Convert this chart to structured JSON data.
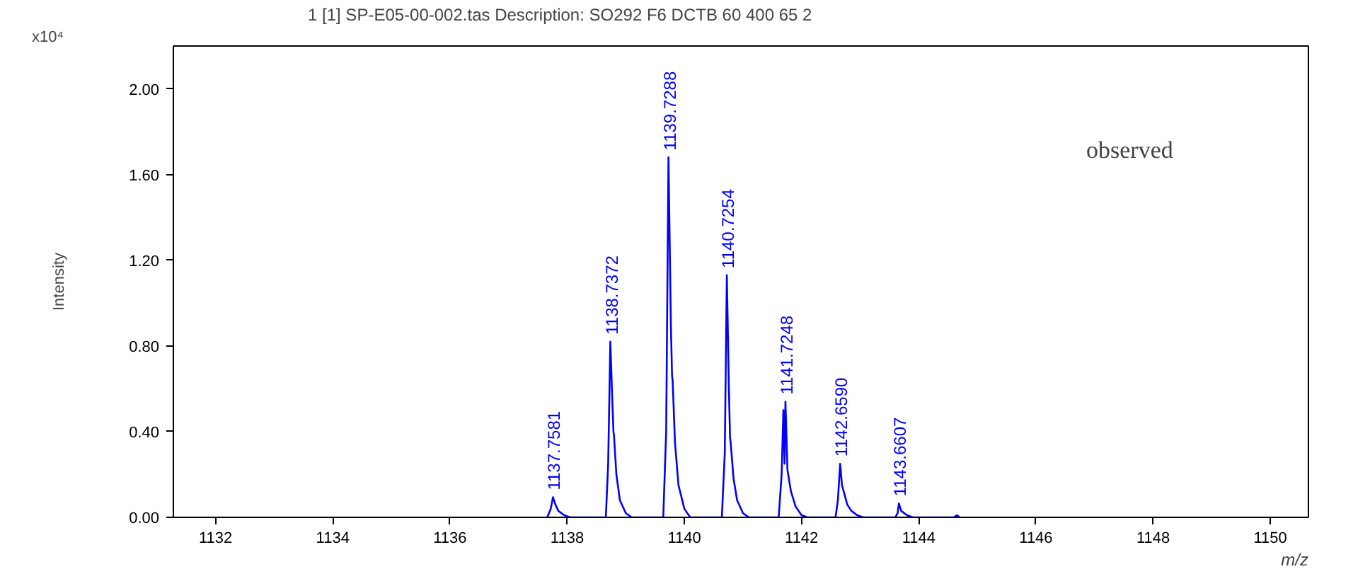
{
  "chart_data": {
    "type": "line",
    "title": "1 [1] SP-E05-00-002.tas    Description: SO292 F6 DCTB 60 400 65 2",
    "xlabel": "m/z",
    "ylabel": "Intensity",
    "annotations": [
      "x10⁴",
      "observed",
      {
        "text": "1137.7581",
        "x": 1137.7581,
        "y": 0.094
      },
      {
        "text": "1138.7372",
        "x": 1138.7372,
        "y": 0.82
      },
      {
        "text": "1139.7288",
        "x": 1139.7288,
        "y": 1.68
      },
      {
        "text": "1140.7254",
        "x": 1140.7254,
        "y": 1.13
      },
      {
        "text": "1141.7248",
        "x": 1141.7248,
        "y": 0.54
      },
      {
        "text": "1142.6590",
        "x": 1142.659,
        "y": 0.25
      },
      {
        "text": "1143.6607",
        "x": 1143.6607,
        "y": 0.065
      }
    ],
    "x": [
      1137.66,
      1137.72,
      1137.758,
      1137.8,
      1137.85,
      1137.95,
      1138.05,
      1138.66,
      1138.7,
      1138.737,
      1138.77,
      1138.79,
      1138.8,
      1138.84,
      1138.9,
      1139.0,
      1139.1,
      1139.64,
      1139.69,
      1139.729,
      1139.77,
      1139.79,
      1139.8,
      1139.84,
      1139.9,
      1140.0,
      1140.1,
      1140.64,
      1140.69,
      1140.725,
      1140.76,
      1140.78,
      1140.79,
      1140.84,
      1140.9,
      1141.0,
      1141.1,
      1141.61,
      1141.66,
      1141.69,
      1141.71,
      1141.725,
      1141.76,
      1141.82,
      1141.9,
      1142.0,
      1142.1,
      1142.58,
      1142.62,
      1142.659,
      1142.69,
      1142.72,
      1142.78,
      1142.85,
      1142.95,
      1143.05,
      1143.6,
      1143.64,
      1143.661,
      1143.7,
      1143.8,
      1143.9,
      1144.6,
      1144.65,
      1144.7
    ],
    "series": [
      {
        "color": "#0000ff",
        "values": [
          0,
          0.04,
          0.094,
          0.06,
          0.03,
          0.01,
          0,
          0,
          0.25,
          0.82,
          0.55,
          0.4,
          0.38,
          0.2,
          0.08,
          0.02,
          0,
          0,
          0.4,
          1.68,
          0.9,
          0.66,
          0.64,
          0.35,
          0.15,
          0.04,
          0,
          0,
          0.3,
          1.13,
          0.6,
          0.37,
          0.35,
          0.18,
          0.08,
          0.02,
          0,
          0,
          0.2,
          0.5,
          0.25,
          0.54,
          0.22,
          0.12,
          0.05,
          0.01,
          0,
          0,
          0.08,
          0.25,
          0.15,
          0.12,
          0.06,
          0.03,
          0.01,
          0,
          0,
          0.02,
          0.065,
          0.03,
          0.01,
          0,
          0,
          0.01,
          0
        ]
      }
    ],
    "xlim": [
      1131.28,
      1150.65
    ],
    "ylim": [
      0,
      2.2
    ],
    "xticks": [
      1132,
      1134,
      1136,
      1138,
      1140,
      1142,
      1144,
      1146,
      1148,
      1150
    ],
    "yticks": [
      {
        "value": 0,
        "label": "0.00"
      },
      {
        "value": 0.4,
        "label": "0.40"
      },
      {
        "value": 0.8,
        "label": "0.80"
      },
      {
        "value": 1.2,
        "label": "1.20"
      },
      {
        "value": 1.6,
        "label": "1.60"
      },
      {
        "value": 2.0,
        "label": "2.00"
      }
    ],
    "grid": false,
    "line_style": "solid",
    "marker": "none"
  }
}
